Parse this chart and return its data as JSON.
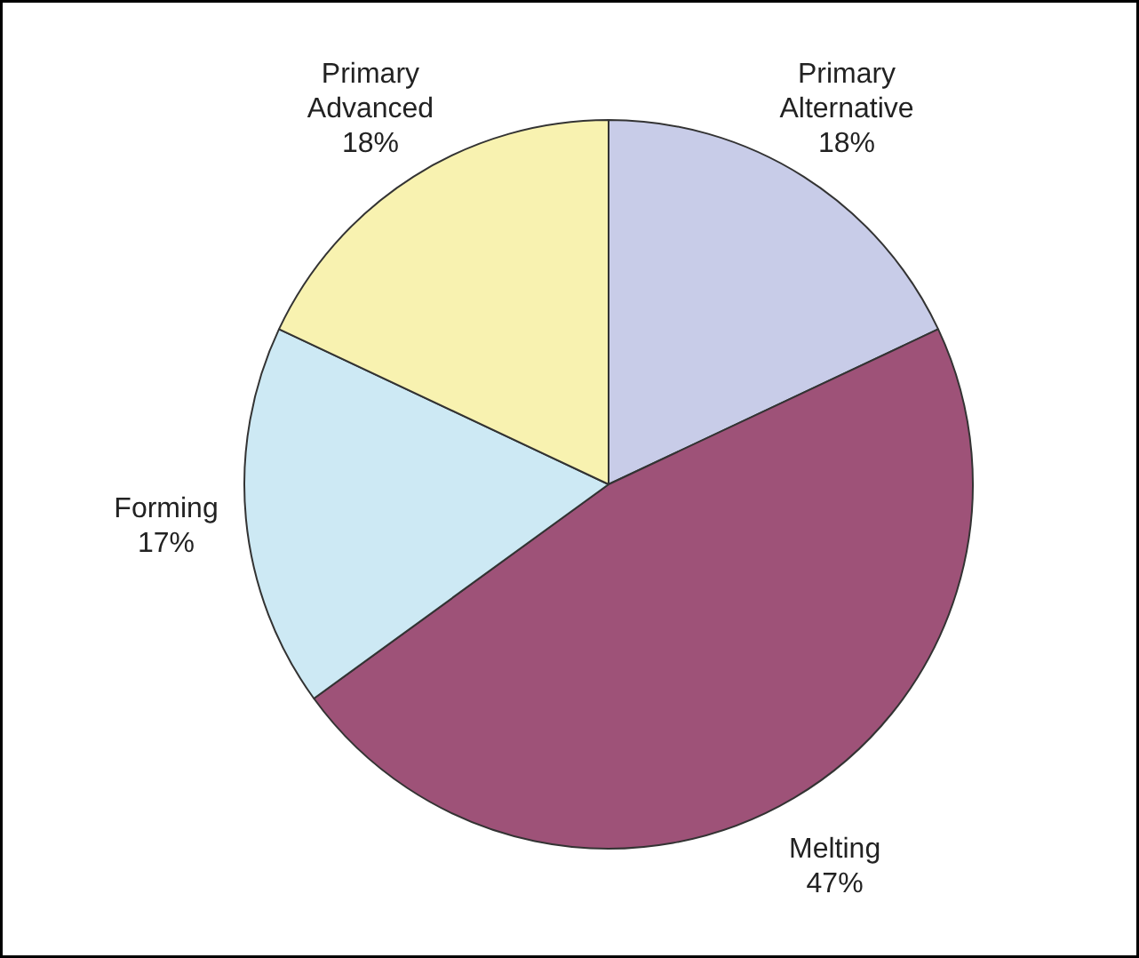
{
  "chart_data": {
    "type": "pie",
    "categories": [
      "Primary Alternative",
      "Melting",
      "Forming",
      "Primary Advanced"
    ],
    "values": [
      18,
      47,
      17,
      18
    ],
    "colors": [
      "#c8cce8",
      "#9e5278",
      "#cde9f4",
      "#f8f2b0"
    ],
    "value_labels": [
      "18%",
      "47%",
      "17%",
      "18%"
    ]
  }
}
